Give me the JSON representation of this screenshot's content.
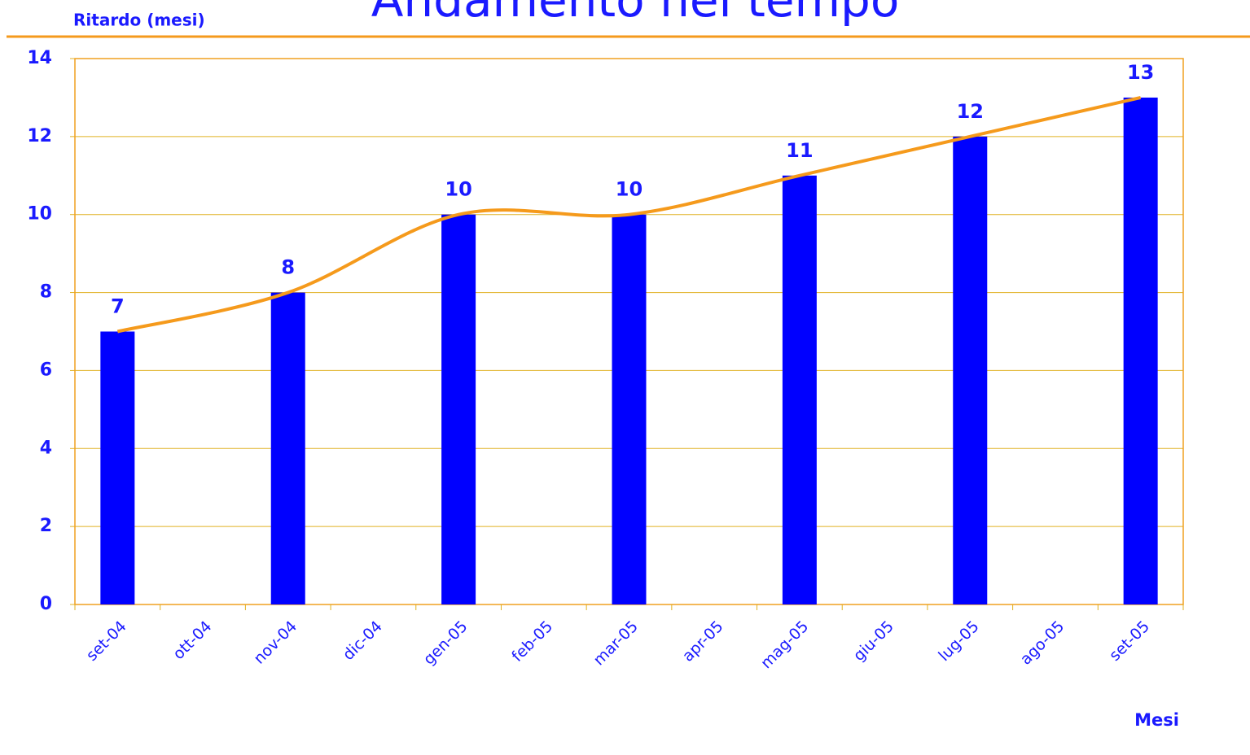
{
  "chart_data": {
    "type": "bar",
    "title": "Andamento nel tempo",
    "y_label": "Ritardo  (mesi)",
    "x_label": "Mesi",
    "categories": [
      "set-04",
      "ott-04",
      "nov-04",
      "dic-04",
      "gen-05",
      "feb-05",
      "mar-05",
      "apr-05",
      "mag-05",
      "giu-05",
      "lug-05",
      "ago-05",
      "set-05"
    ],
    "x": [
      "set-04",
      "nov-04",
      "gen-05",
      "mar-05",
      "mag-05",
      "lug-05",
      "set-05"
    ],
    "values": [
      7,
      8,
      10,
      10,
      11,
      12,
      13
    ],
    "color": "#0000ff",
    "line_color": "#f59a1c",
    "smooth_line": true,
    "ylim": [
      0,
      14
    ],
    "yticks": [
      0,
      2,
      4,
      6,
      8,
      10,
      12,
      14
    ],
    "grid": true
  }
}
